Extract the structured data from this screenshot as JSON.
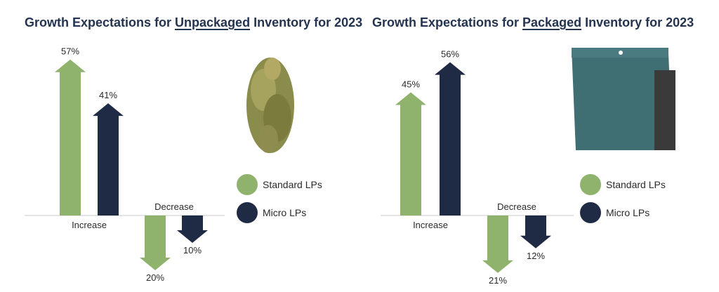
{
  "colors": {
    "standard": "#8fb36c",
    "micro": "#1f2b45",
    "title": "#243450"
  },
  "legend": {
    "standard": "Standard LPs",
    "micro": "Micro LPs"
  },
  "chart_data": [
    {
      "type": "bar",
      "title_parts": [
        "Growth Expectations for ",
        "Unpackaged",
        " Inventory for 2023"
      ],
      "categories": [
        "Increase",
        "Decrease"
      ],
      "series": [
        {
          "name": "Standard LPs",
          "values": [
            57,
            -20
          ],
          "labels": [
            "57%",
            "20%"
          ]
        },
        {
          "name": "Micro LPs",
          "values": [
            41,
            -10
          ],
          "labels": [
            "41%",
            "10%"
          ]
        }
      ],
      "image": "cannabis-bud-icon"
    },
    {
      "type": "bar",
      "title_parts": [
        "Growth Expectations for ",
        "Packaged",
        " Inventory for 2023"
      ],
      "categories": [
        "Increase",
        "Decrease"
      ],
      "series": [
        {
          "name": "Standard LPs",
          "values": [
            45,
            -21
          ],
          "labels": [
            "45%",
            "21%"
          ]
        },
        {
          "name": "Micro LPs",
          "values": [
            56,
            -12
          ],
          "labels": [
            "56%",
            "12%"
          ]
        }
      ],
      "image": "packaging-pouch-icon"
    }
  ]
}
